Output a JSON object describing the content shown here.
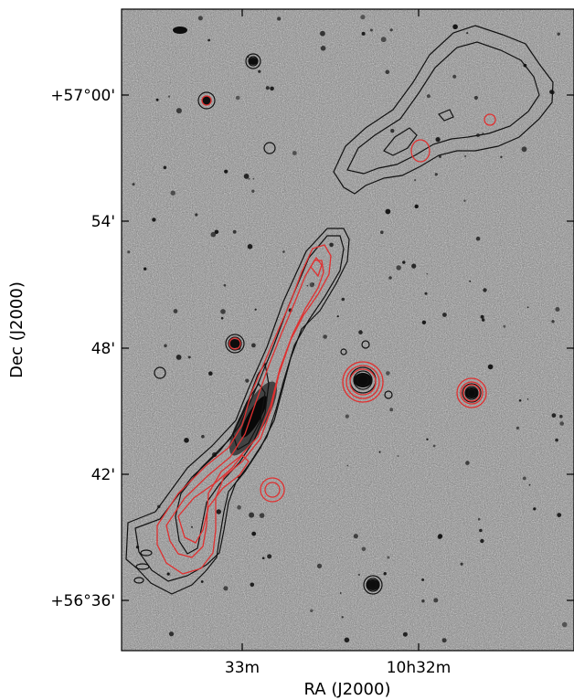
{
  "figure": {
    "xlabel": "RA (J2000)",
    "ylabel": "Dec (J2000)",
    "x_ticks": [
      "33m",
      "10h32m"
    ],
    "y_ticks": [
      "+57°00'",
      "54'",
      "48'",
      "42'",
      "+56°36'"
    ],
    "colors": {
      "background_noise": "#8a8a8a",
      "black_contours": "#111111",
      "red_contours": "#e03030"
    }
  }
}
